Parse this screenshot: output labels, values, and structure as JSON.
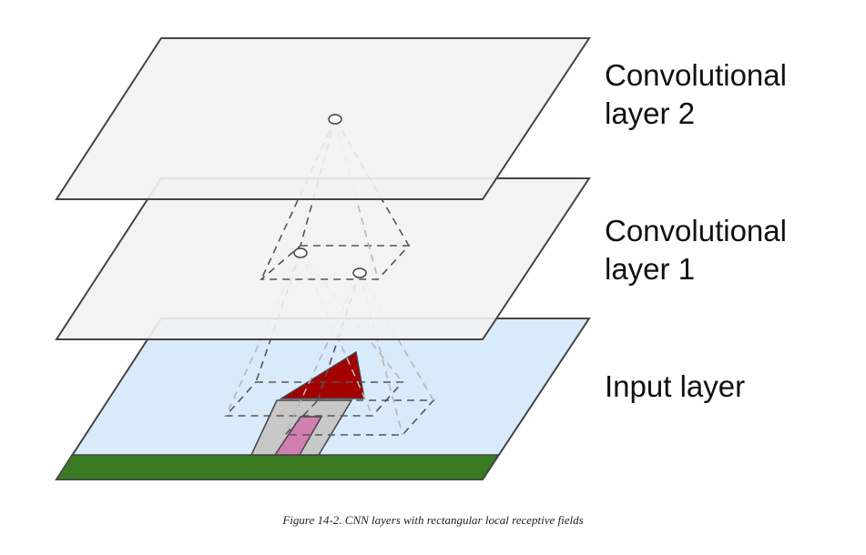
{
  "labels": {
    "conv2": "Convolutional\nlayer 2",
    "conv1": "Convolutional\nlayer 1",
    "input": "Input layer"
  },
  "caption": "Figure 14-2. CNN layers with rectangular local receptive fields",
  "colors": {
    "conv_layer_fill": "#f2f2f2",
    "input_layer_fill": "#d9eafb",
    "ground_fill": "#3a7a22",
    "roof_fill": "#a30000",
    "house_wall_fill": "#c8c8c8",
    "door_fill": "#d17fae",
    "outline": "#444444",
    "dashed_dark": "#555555",
    "dashed_light": "#b8b8b8"
  }
}
